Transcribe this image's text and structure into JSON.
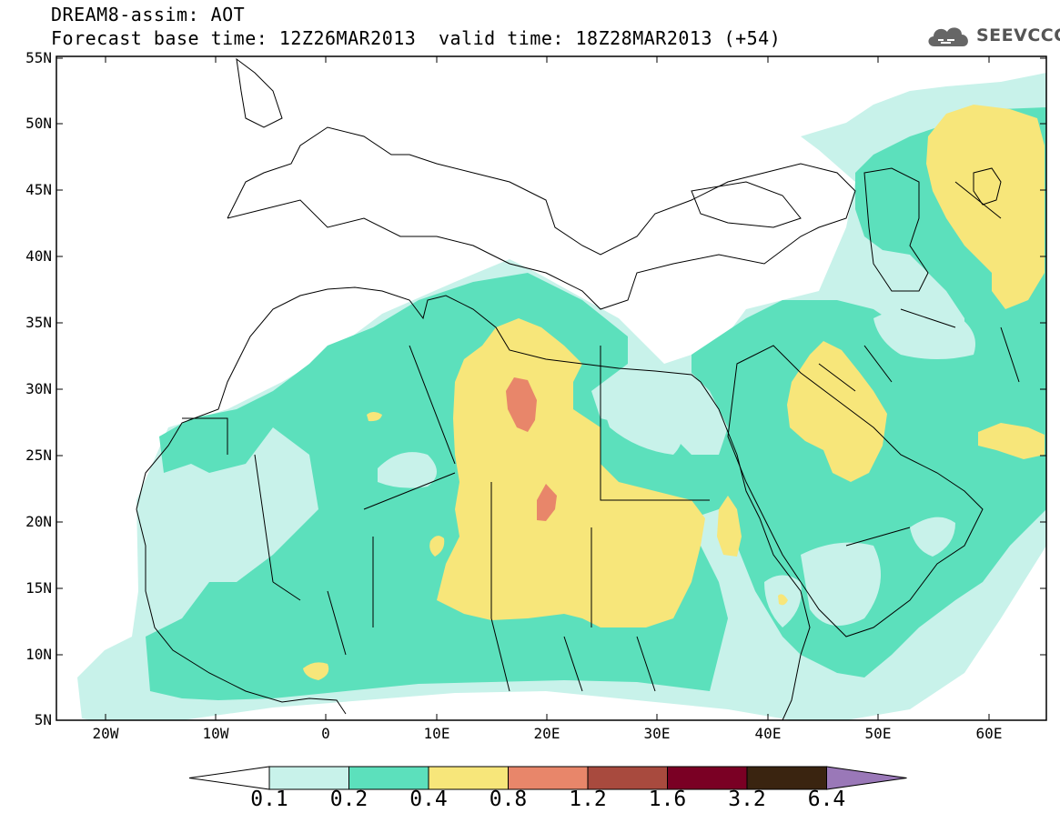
{
  "header": {
    "title_line1": "DREAM8-assim: AOT",
    "title_line2_left": "Forecast base time: 12Z26MAR2013",
    "title_line2_right": "valid time: 18Z28MAR2013 (+54)"
  },
  "logo": {
    "text": "SEEVCCC",
    "icon": "cloud-icon"
  },
  "map": {
    "lat_labels": [
      "55N",
      "50N",
      "45N",
      "40N",
      "35N",
      "30N",
      "25N",
      "20N",
      "15N",
      "10N",
      "5N"
    ],
    "lon_labels": [
      "20W",
      "10W",
      "0",
      "10E",
      "20E",
      "30E",
      "40E",
      "50E",
      "60E"
    ],
    "colors": {
      "c1": "#c8f2ea",
      "c2": "#5ce0bc",
      "c3": "#f7e67a",
      "c4": "#e8866a",
      "c5": "#a84a3e",
      "c6": "#7a0024",
      "c7": "#3a2410",
      "c8": "#9a78b8",
      "frame": "#000000",
      "coast": "#000000"
    }
  },
  "colorbar": {
    "labels": [
      "0.1",
      "0.2",
      "0.4",
      "0.8",
      "1.2",
      "1.6",
      "3.2",
      "6.4"
    ],
    "colors": [
      "#c8f2ea",
      "#5ce0bc",
      "#f7e67a",
      "#e8866a",
      "#a84a3e",
      "#7a0024",
      "#3a2410"
    ],
    "under_color": "#ffffff",
    "over_color": "#9a78b8"
  }
}
